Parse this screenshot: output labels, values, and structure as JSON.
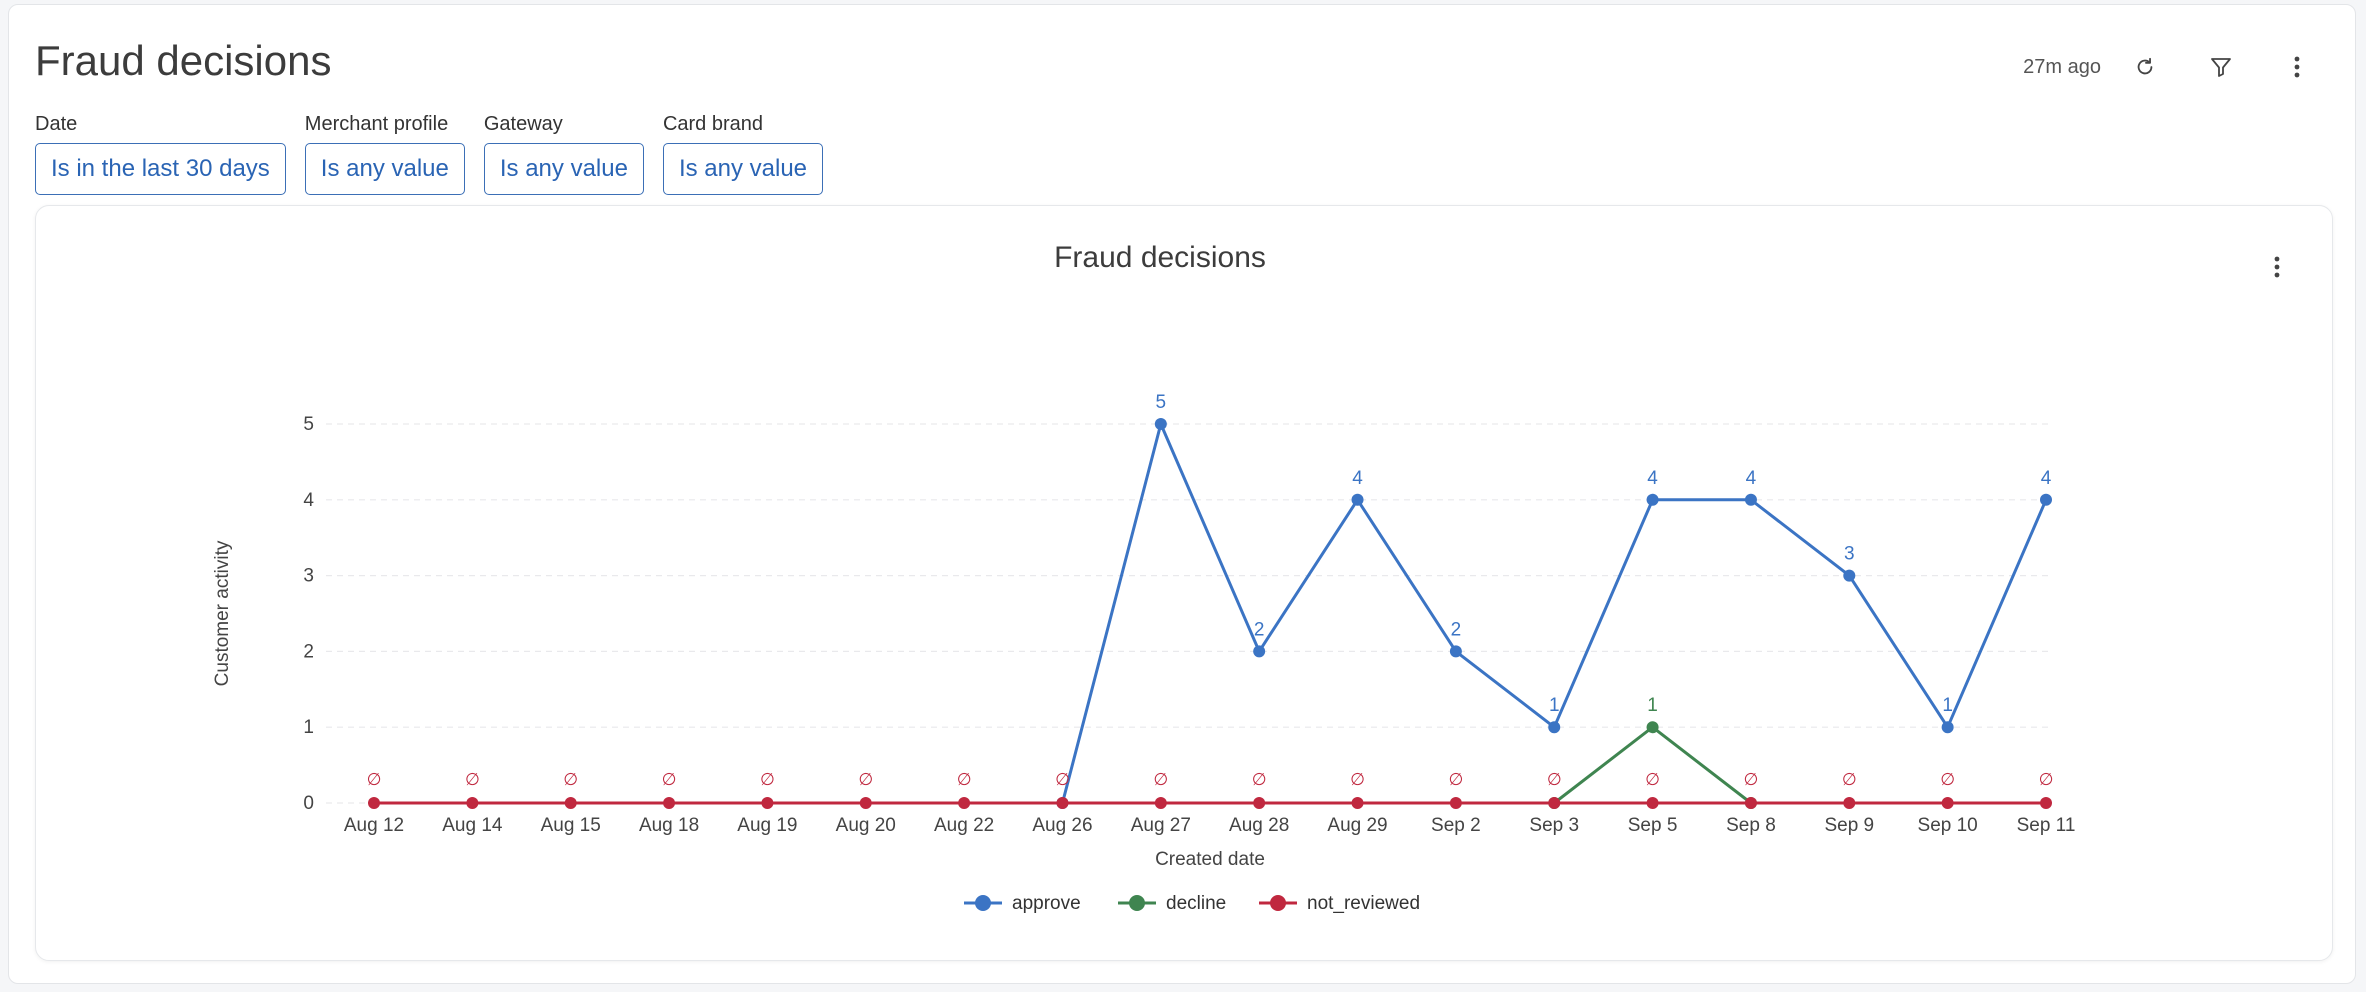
{
  "page": {
    "title": "Fraud decisions",
    "updated": "27m ago"
  },
  "icons": {
    "refresh": "refresh-icon",
    "filter": "filter-icon",
    "menu": "more-vertical-icon"
  },
  "filters": [
    {
      "label": "Date",
      "value": "Is in the last 30 days"
    },
    {
      "label": "Merchant profile",
      "value": "Is any value"
    },
    {
      "label": "Gateway",
      "value": "Is any value"
    },
    {
      "label": "Card brand",
      "value": "Is any value"
    }
  ],
  "colors": {
    "accent": "#2a64b4",
    "approve": "#3b74c4",
    "decline": "#3f8550",
    "not_reviewed": "#c0283f"
  },
  "chart_data": {
    "type": "line",
    "title": "Fraud decisions",
    "xlabel": "Created date",
    "ylabel": "Customer activity",
    "categories": [
      "Aug 12",
      "Aug 14",
      "Aug 15",
      "Aug 18",
      "Aug 19",
      "Aug 20",
      "Aug 22",
      "Aug 26",
      "Aug 27",
      "Aug 28",
      "Aug 29",
      "Sep 2",
      "Sep 3",
      "Sep 5",
      "Sep 8",
      "Sep 9",
      "Sep 10",
      "Sep 11"
    ],
    "ylim": [
      0,
      5
    ],
    "yticks": [
      0,
      1,
      2,
      3,
      4,
      5
    ],
    "grid": true,
    "legend_position": "bottom",
    "null_label": "∅",
    "series": [
      {
        "name": "approve",
        "color": "#3b74c4",
        "values": [
          null,
          null,
          null,
          null,
          null,
          null,
          null,
          0,
          5,
          2,
          4,
          2,
          1,
          4,
          4,
          3,
          1,
          4
        ]
      },
      {
        "name": "decline",
        "color": "#3f8550",
        "values": [
          null,
          null,
          null,
          null,
          null,
          null,
          null,
          null,
          null,
          null,
          null,
          null,
          0,
          1,
          0,
          null,
          null,
          null
        ]
      },
      {
        "name": "not_reviewed",
        "color": "#c0283f",
        "values": [
          0,
          0,
          0,
          0,
          0,
          0,
          0,
          0,
          0,
          0,
          0,
          0,
          0,
          0,
          0,
          0,
          0,
          0
        ]
      }
    ],
    "data_labels": [
      {
        "series": "approve",
        "category": "Aug 27",
        "text": "5"
      },
      {
        "series": "approve",
        "category": "Aug 28",
        "text": "2"
      },
      {
        "series": "approve",
        "category": "Aug 29",
        "text": "4"
      },
      {
        "series": "approve",
        "category": "Sep 2",
        "text": "2"
      },
      {
        "series": "approve",
        "category": "Sep 3",
        "text": "1"
      },
      {
        "series": "approve",
        "category": "Sep 5",
        "text": "4"
      },
      {
        "series": "approve",
        "category": "Sep 8",
        "text": "4"
      },
      {
        "series": "approve",
        "category": "Sep 9",
        "text": "3"
      },
      {
        "series": "approve",
        "category": "Sep 10",
        "text": "1"
      },
      {
        "series": "approve",
        "category": "Sep 11",
        "text": "4"
      },
      {
        "series": "decline",
        "category": "Sep 5",
        "text": "1"
      }
    ]
  }
}
